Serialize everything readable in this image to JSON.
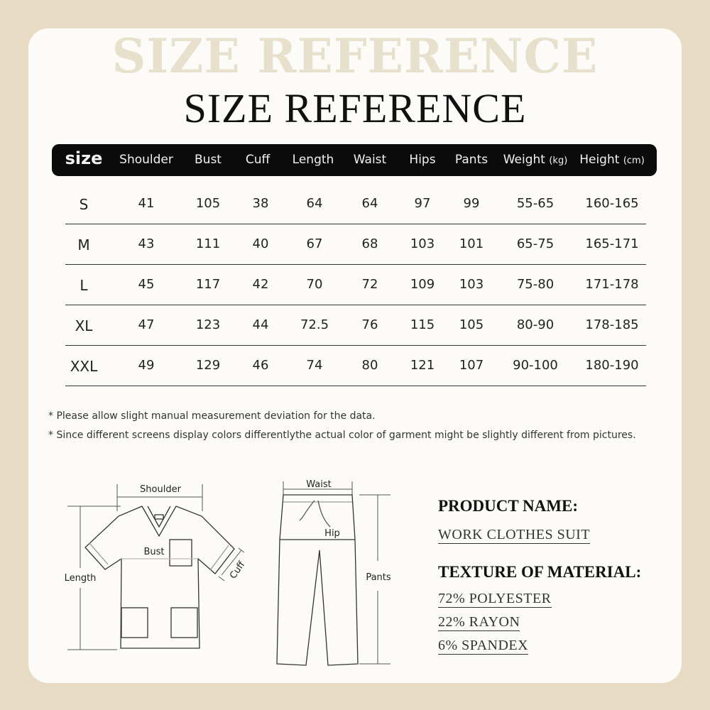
{
  "title": "SIZE REFERENCE",
  "watermark": "SIZE REFERENCE",
  "table": {
    "headers": [
      "size",
      "Shoulder",
      "Bust",
      "Cuff",
      "Length",
      "Waist",
      "Hips",
      "Pants",
      "Weight",
      "Height"
    ],
    "header_units": {
      "weight": "(kg)",
      "height": "(cm)"
    },
    "rows": [
      [
        "S",
        "41",
        "105",
        "38",
        "64",
        "64",
        "97",
        "99",
        "55-65",
        "160-165"
      ],
      [
        "M",
        "43",
        "111",
        "40",
        "67",
        "68",
        "103",
        "101",
        "65-75",
        "165-171"
      ],
      [
        "L",
        "45",
        "117",
        "42",
        "70",
        "72",
        "109",
        "103",
        "75-80",
        "171-178"
      ],
      [
        "XL",
        "47",
        "123",
        "44",
        "72.5",
        "76",
        "115",
        "105",
        "80-90",
        "178-185"
      ],
      [
        "XXL",
        "49",
        "129",
        "46",
        "74",
        "80",
        "121",
        "107",
        "90-100",
        "180-190"
      ]
    ]
  },
  "notes": [
    "* Please allow slight manual measurement deviation for the data.",
    "* Since different screens display colors differentlythe actual color of garment might be slightly different from pictures."
  ],
  "diagram": {
    "shirt_labels": {
      "shoulder": "Shoulder",
      "bust": "Bust",
      "cuff": "Cuff",
      "length": "Length"
    },
    "pants_labels": {
      "waist": "Waist",
      "hip": "Hip",
      "pants": "Pants"
    }
  },
  "product": {
    "name_label": "PRODUCT NAME:",
    "name": "WORK CLOTHES SUIT",
    "material_label": "TEXTURE OF MATERIAL:",
    "materials": [
      "72% POLYESTER",
      "22% RAYON",
      "6% SPANDEX"
    ]
  },
  "colors": {
    "background": "#e8dbc4",
    "card": "#fcfbf8",
    "header_bar": "#0b0b0b"
  }
}
